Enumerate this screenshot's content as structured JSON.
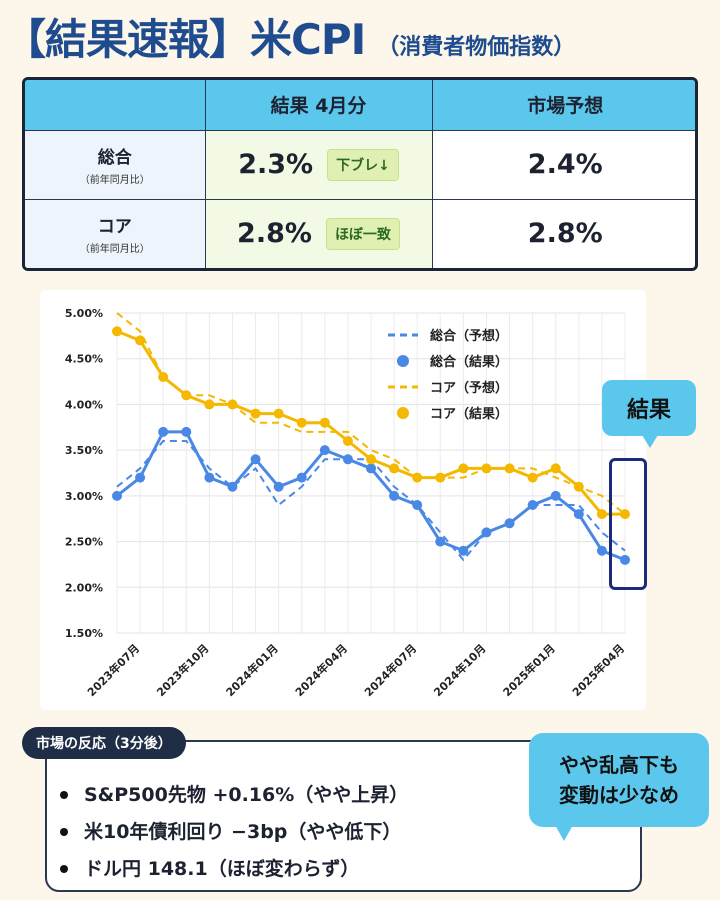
{
  "header": {
    "title": "【結果速報】米CPI",
    "subtitle": "（消費者物価指数）"
  },
  "table": {
    "corner": "",
    "col_result": "結果 4月分",
    "col_forecast": "市場予想",
    "rows": [
      {
        "label": "総合",
        "sublabel": "（前年同月比）",
        "result": "2.3%",
        "badge": "下ブレ↓",
        "forecast": "2.4%"
      },
      {
        "label": "コア",
        "sublabel": "（前年同月比）",
        "result": "2.8%",
        "badge": "ほぼ一致",
        "forecast": "2.8%"
      }
    ]
  },
  "chart_callout": "結果",
  "reaction": {
    "tag": "市場の反応（3分後）",
    "items": [
      "S&P500先物 +0.16%（やや上昇）",
      "米10年債利回り −3bp（やや低下）",
      "ドル円 148.1（ほぼ変わらず）"
    ]
  },
  "comment": {
    "line1": "やや乱高下も",
    "line2": "変動は少なめ"
  },
  "chart_data": {
    "type": "line",
    "x": [
      "2023-06",
      "2023-07",
      "2023-08",
      "2023-09",
      "2023-10",
      "2023-11",
      "2023-12",
      "2024-01",
      "2024-02",
      "2024-03",
      "2024-04",
      "2024-05",
      "2024-06",
      "2024-07",
      "2024-08",
      "2024-09",
      "2024-10",
      "2024-11",
      "2024-12",
      "2025-01",
      "2025-02",
      "2025-03",
      "2025-04"
    ],
    "x_tick_labels": [
      "2023年07月",
      "2023年10月",
      "2024年01月",
      "2024年04月",
      "2024年07月",
      "2024年10月",
      "2025年01月",
      "2025年04月"
    ],
    "x_tick_positions": [
      "2023-07",
      "2023-10",
      "2024-01",
      "2024-04",
      "2024-07",
      "2024-10",
      "2025-01",
      "2025-04"
    ],
    "y_tick_labels": [
      "5.00%",
      "4.50%",
      "4.00%",
      "3.50%",
      "3.00%",
      "2.50%",
      "2.00%",
      "1.50%"
    ],
    "ylim": [
      1.5,
      5.0
    ],
    "grid": true,
    "legend_position": "top-right",
    "colors": {
      "headline": "#4a88e6",
      "core": "#f5b800"
    },
    "series": [
      {
        "name": "総合（予想）",
        "style": "dashed",
        "color": "#4a88e6",
        "values": [
          3.1,
          3.3,
          3.6,
          3.6,
          3.3,
          3.1,
          3.3,
          2.9,
          3.1,
          3.4,
          3.4,
          3.4,
          3.1,
          2.9,
          2.6,
          2.3,
          2.6,
          2.7,
          2.9,
          2.9,
          2.9,
          2.6,
          2.4
        ]
      },
      {
        "name": "総合（結果）",
        "style": "markers",
        "color": "#4a88e6",
        "values": [
          3.0,
          3.2,
          3.7,
          3.7,
          3.2,
          3.1,
          3.4,
          3.1,
          3.2,
          3.5,
          3.4,
          3.3,
          3.0,
          2.9,
          2.5,
          2.4,
          2.6,
          2.7,
          2.9,
          3.0,
          2.8,
          2.4,
          2.3
        ]
      },
      {
        "name": "コア（予想）",
        "style": "dashed",
        "color": "#f5b800",
        "values": [
          5.0,
          4.8,
          4.3,
          4.1,
          4.1,
          4.0,
          3.8,
          3.8,
          3.7,
          3.7,
          3.7,
          3.5,
          3.4,
          3.2,
          3.2,
          3.2,
          3.3,
          3.3,
          3.3,
          3.2,
          3.1,
          3.0,
          2.8
        ]
      },
      {
        "name": "コア（結果）",
        "style": "line-markers",
        "color": "#f5b800",
        "values": [
          4.8,
          4.7,
          4.3,
          4.1,
          4.0,
          4.0,
          3.9,
          3.9,
          3.8,
          3.8,
          3.6,
          3.4,
          3.3,
          3.2,
          3.2,
          3.3,
          3.3,
          3.3,
          3.2,
          3.3,
          3.1,
          2.8,
          2.8
        ]
      }
    ]
  }
}
